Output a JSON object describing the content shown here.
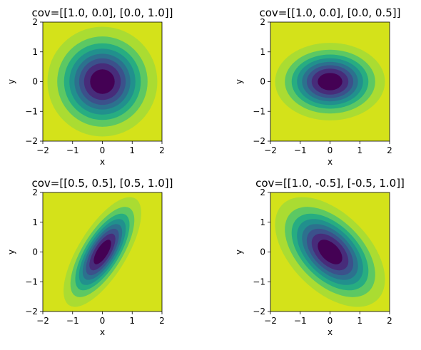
{
  "figure": {
    "colormap": [
      "#440154",
      "#472c7a",
      "#3b518b",
      "#2c718e",
      "#21908d",
      "#27ad81",
      "#5cc863",
      "#aadc32",
      "#d4e21a"
    ],
    "contour_levels": [
      0.17,
      0.38,
      0.61,
      0.88,
      1.23,
      1.66,
      2.3,
      3.4
    ]
  },
  "chart_data": [
    {
      "type": "contour",
      "title": "cov=[[1.0, 0.0], [0.0, 1.0]]",
      "cov": [
        [
          1.0,
          0.0
        ],
        [
          0.0,
          1.0
        ]
      ],
      "xlabel": "x",
      "ylabel": "y",
      "xlim": [
        -2,
        2
      ],
      "ylim": [
        -2,
        2
      ],
      "xticks": [
        "−2",
        "−1",
        "0",
        "1",
        "2"
      ],
      "yticks": [
        "−2",
        "−1",
        "0",
        "1",
        "2"
      ],
      "grid": false
    },
    {
      "type": "contour",
      "title": "cov=[[1.0, 0.0], [0.0, 0.5]]",
      "cov": [
        [
          1.0,
          0.0
        ],
        [
          0.0,
          0.5
        ]
      ],
      "xlabel": "x",
      "ylabel": "y",
      "xlim": [
        -2,
        2
      ],
      "ylim": [
        -2,
        2
      ],
      "xticks": [
        "−2",
        "−1",
        "0",
        "1",
        "2"
      ],
      "yticks": [
        "−2",
        "−1",
        "0",
        "1",
        "2"
      ],
      "grid": false
    },
    {
      "type": "contour",
      "title": "cov=[[0.5, 0.5], [0.5, 1.0]]",
      "cov": [
        [
          0.5,
          0.5
        ],
        [
          0.5,
          1.0
        ]
      ],
      "xlabel": "x",
      "ylabel": "y",
      "xlim": [
        -2,
        2
      ],
      "ylim": [
        -2,
        2
      ],
      "xticks": [
        "−2",
        "−1",
        "0",
        "1",
        "2"
      ],
      "yticks": [
        "−2",
        "−1",
        "0",
        "1",
        "2"
      ],
      "grid": false
    },
    {
      "type": "contour",
      "title": "cov=[[1.0, -0.5], [-0.5, 1.0]]",
      "cov": [
        [
          1.0,
          -0.5
        ],
        [
          -0.5,
          1.0
        ]
      ],
      "xlabel": "x",
      "ylabel": "y",
      "xlim": [
        -2,
        2
      ],
      "ylim": [
        -2,
        2
      ],
      "xticks": [
        "−2",
        "−1",
        "0",
        "1",
        "2"
      ],
      "yticks": [
        "−2",
        "−1",
        "0",
        "1",
        "2"
      ],
      "grid": false
    }
  ]
}
